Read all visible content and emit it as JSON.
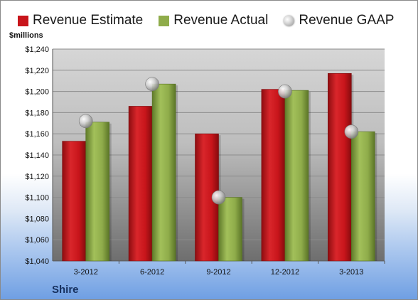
{
  "colors": {
    "estimate": "#c8151b",
    "actual": "#8fac4a",
    "gaap": "#b9b9b9",
    "text": "#1a1a1a",
    "company": "#16305e"
  },
  "legend": [
    {
      "label": "Revenue Estimate",
      "series": "estimate"
    },
    {
      "label": "Revenue Actual",
      "series": "actual"
    },
    {
      "label": "Revenue GAAP",
      "series": "gaap"
    }
  ],
  "company": "Shire",
  "chart_data": {
    "type": "bar",
    "title": "",
    "xlabel": "",
    "ylabel": "$millions",
    "ylim": [
      1040,
      1240
    ],
    "ytick_step": 20,
    "ytick_labels": [
      "$1,040",
      "$1,060",
      "$1,080",
      "$1,100",
      "$1,120",
      "$1,140",
      "$1,160",
      "$1,180",
      "$1,200",
      "$1,220",
      "$1,240"
    ],
    "categories": [
      "3-2012",
      "6-2012",
      "9-2012",
      "12-2012",
      "3-2013"
    ],
    "series": [
      {
        "name": "Revenue Estimate",
        "key": "estimate",
        "mark": "bar",
        "values": [
          1153,
          1186,
          1160,
          1202,
          1217
        ]
      },
      {
        "name": "Revenue Actual",
        "key": "actual",
        "mark": "bar",
        "values": [
          1171,
          1207,
          1100,
          1201,
          1162
        ]
      },
      {
        "name": "Revenue GAAP",
        "key": "gaap",
        "mark": "point",
        "values": [
          1172,
          1207,
          1100,
          1200,
          1162
        ]
      }
    ],
    "grid": true,
    "legend_position": "top"
  }
}
